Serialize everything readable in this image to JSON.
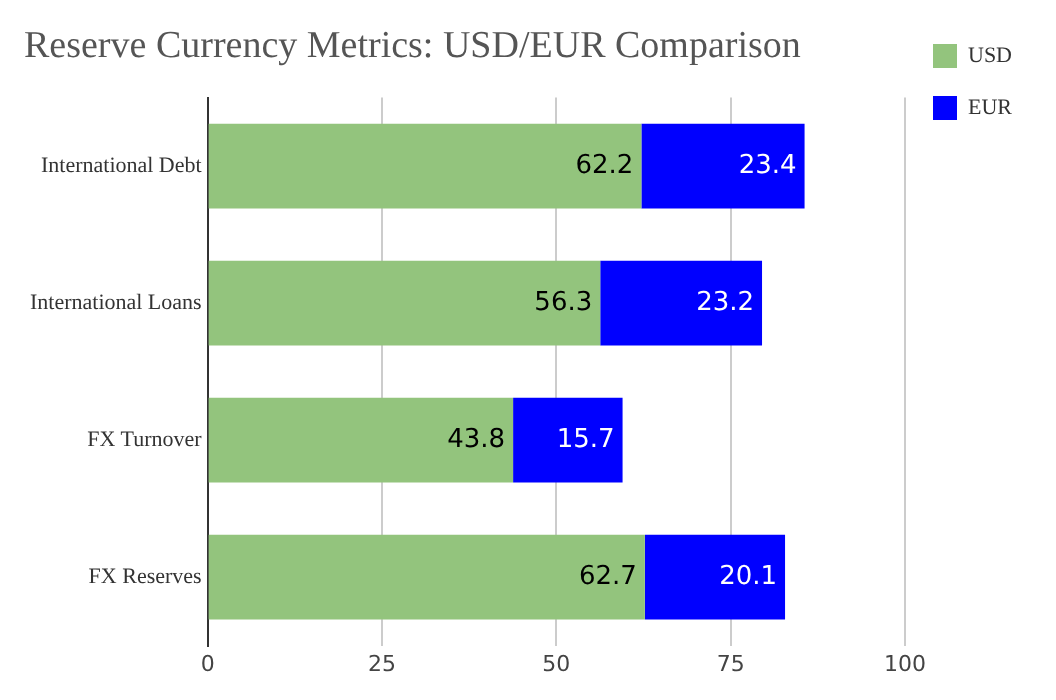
{
  "chart_data": {
    "type": "bar",
    "orientation": "horizontal",
    "stacked": true,
    "title": "Reserve Currency Metrics: USD/EUR Comparison",
    "categories": [
      "International Debt",
      "International Loans",
      "FX Turnover",
      "FX Reserves"
    ],
    "series": [
      {
        "name": "USD",
        "color": "#93c47d",
        "values": [
          62.2,
          56.3,
          43.8,
          62.7
        ]
      },
      {
        "name": "EUR",
        "color": "#0000ff",
        "values": [
          23.4,
          23.2,
          15.7,
          20.1
        ]
      }
    ],
    "xlim": [
      0,
      100
    ],
    "xticks": [
      0,
      25,
      50,
      75,
      100
    ],
    "grid": "x",
    "legend": "top right",
    "data_labels": true
  }
}
